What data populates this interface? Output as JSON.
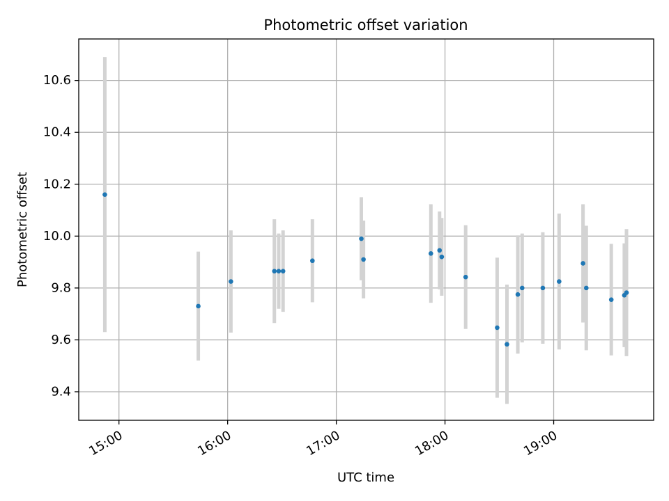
{
  "chart_data": {
    "type": "scatter",
    "title": "Photometric offset variation",
    "xlabel": "UTC time",
    "ylabel": "Photometric offset",
    "x_unit": "hours UTC",
    "xlim": [
      14.63,
      19.92
    ],
    "ylim": [
      9.29,
      10.76
    ],
    "x_ticks": [
      {
        "value": 15,
        "label": "15:00"
      },
      {
        "value": 16,
        "label": "16:00"
      },
      {
        "value": 17,
        "label": "17:00"
      },
      {
        "value": 18,
        "label": "18:00"
      },
      {
        "value": 19,
        "label": "19:00"
      }
    ],
    "y_ticks": [
      {
        "value": 9.4,
        "label": "9.4"
      },
      {
        "value": 9.6,
        "label": "9.6"
      },
      {
        "value": 9.8,
        "label": "9.8"
      },
      {
        "value": 10.0,
        "label": "10.0"
      },
      {
        "value": 10.2,
        "label": "10.2"
      },
      {
        "value": 10.4,
        "label": "10.4"
      },
      {
        "value": 10.6,
        "label": "10.6"
      }
    ],
    "grid": true,
    "point_color": "#1f77b4",
    "errorbar_color": "#d3d3d3",
    "points": [
      {
        "x": 14.87,
        "y": 10.16,
        "err": 0.53
      },
      {
        "x": 15.73,
        "y": 9.73,
        "err": 0.21
      },
      {
        "x": 16.03,
        "y": 9.825,
        "err": 0.197
      },
      {
        "x": 16.43,
        "y": 9.865,
        "err": 0.2
      },
      {
        "x": 16.47,
        "y": 9.865,
        "err": 0.145
      },
      {
        "x": 16.51,
        "y": 9.865,
        "err": 0.157
      },
      {
        "x": 16.78,
        "y": 9.905,
        "err": 0.16
      },
      {
        "x": 17.23,
        "y": 9.99,
        "err": 0.16
      },
      {
        "x": 17.25,
        "y": 9.91,
        "err": 0.15
      },
      {
        "x": 17.87,
        "y": 9.933,
        "err": 0.19
      },
      {
        "x": 17.95,
        "y": 9.945,
        "err": 0.15
      },
      {
        "x": 17.97,
        "y": 9.92,
        "err": 0.15
      },
      {
        "x": 18.19,
        "y": 9.842,
        "err": 0.2
      },
      {
        "x": 18.48,
        "y": 9.647,
        "err": 0.27
      },
      {
        "x": 18.57,
        "y": 9.583,
        "err": 0.23
      },
      {
        "x": 18.67,
        "y": 9.775,
        "err": 0.228
      },
      {
        "x": 18.71,
        "y": 9.8,
        "err": 0.21
      },
      {
        "x": 18.9,
        "y": 9.8,
        "err": 0.215
      },
      {
        "x": 19.05,
        "y": 9.825,
        "err": 0.262
      },
      {
        "x": 19.27,
        "y": 9.895,
        "err": 0.228
      },
      {
        "x": 19.3,
        "y": 9.8,
        "err": 0.24
      },
      {
        "x": 19.53,
        "y": 9.755,
        "err": 0.215
      },
      {
        "x": 19.65,
        "y": 9.772,
        "err": 0.2
      },
      {
        "x": 19.67,
        "y": 9.782,
        "err": 0.245
      }
    ]
  }
}
